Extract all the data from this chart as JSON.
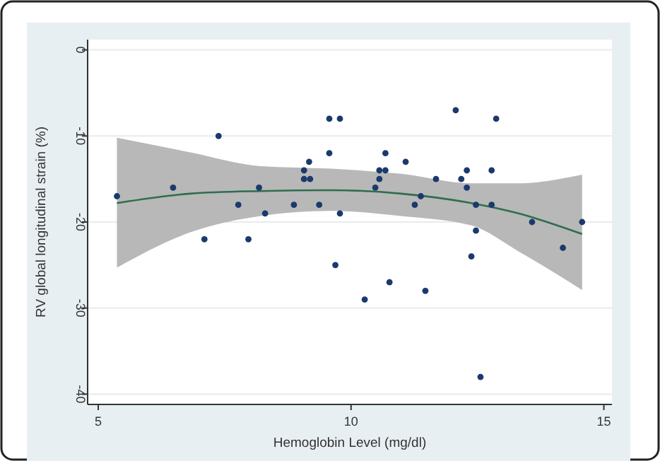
{
  "chart_data": {
    "type": "scatter",
    "xlabel": "Hemoglobin Level (mg/dl)",
    "ylabel": "RV global longitudinal strain (%)",
    "xlim": [
      4.79,
      15.16
    ],
    "ylim": [
      -41.2,
      1.2
    ],
    "xticks": [
      5,
      10,
      15
    ],
    "yticks": [
      0,
      -10,
      -20,
      -30,
      -40
    ],
    "grid": "y",
    "series": [
      {
        "marker": "circle",
        "color": "#1a3a6b",
        "x": [
          5.37,
          6.48,
          7.1,
          7.38,
          7.77,
          7.97,
          8.18,
          8.3,
          8.87,
          9.07,
          9.07,
          9.17,
          9.19,
          9.37,
          9.57,
          9.57,
          9.69,
          9.78,
          9.78,
          10.27,
          10.48,
          10.56,
          10.56,
          10.68,
          10.68,
          10.76,
          11.08,
          11.26,
          11.38,
          11.47,
          11.68,
          12.07,
          12.18,
          12.29,
          12.29,
          12.38,
          12.47,
          12.47,
          12.56,
          12.78,
          12.78,
          12.87,
          13.58,
          14.19,
          14.57
        ],
        "values": [
          -17,
          -16,
          -22,
          -10,
          -18,
          -22,
          -16,
          -19,
          -18,
          -14,
          -15,
          -13,
          -15,
          -18,
          -8,
          -12,
          -25,
          -8,
          -19,
          -29,
          -16,
          -14,
          -15,
          -12,
          -14,
          -27,
          -13,
          -18,
          -17,
          -28,
          -15,
          -7,
          -15,
          -14,
          -16,
          -24,
          -18,
          -21,
          -38,
          -14,
          -18,
          -8,
          -20,
          -23,
          -20
        ]
      },
      {
        "type": "line",
        "color": "#2e6e4e",
        "x": [
          5.37,
          6.82,
          8.21,
          9.6,
          10.99,
          12.38,
          13.31,
          14.57
        ],
        "values": [
          -17.8,
          -16.7,
          -16.4,
          -16.3,
          -16.7,
          -17.8,
          -19.0,
          -21.4
        ],
        "lower": [
          -25.3,
          -21.2,
          -19.3,
          -18.7,
          -19.3,
          -20.4,
          -23.4,
          -27.9
        ],
        "upper": [
          -10.2,
          -11.9,
          -13.5,
          -13.8,
          -14.4,
          -15.5,
          -15.5,
          -14.5
        ]
      }
    ]
  }
}
